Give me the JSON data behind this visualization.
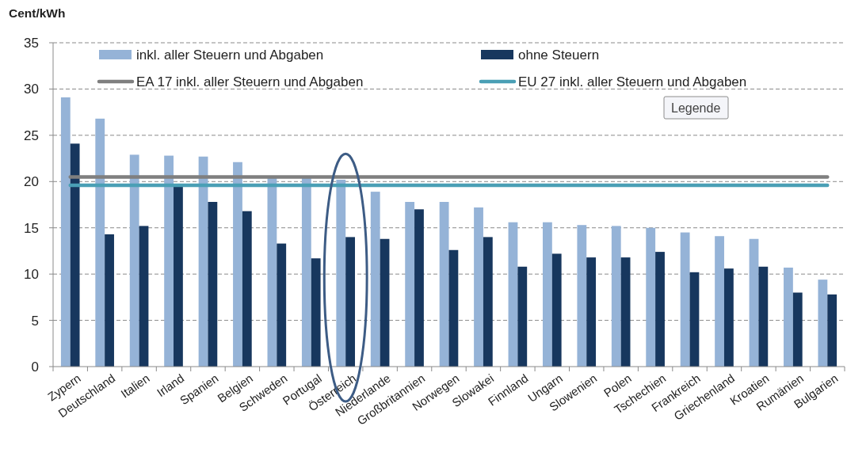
{
  "chart_data": {
    "type": "bar",
    "ylabel": "Cent/kWh",
    "categories": [
      "Zypern",
      "Deutschland",
      "Italien",
      "Irland",
      "Spanien",
      "Belgien",
      "Schweden",
      "Portugal",
      "Österreich",
      "Niederlande",
      "Großbritannien",
      "Norwegen",
      "Slowakei",
      "Finnland",
      "Ungarn",
      "Slowenien",
      "Polen",
      "Tschechien",
      "Frankreich",
      "Griechenland",
      "Kroatien",
      "Rumänien",
      "Bulgarien"
    ],
    "series": [
      {
        "name": "inkl. aller Steuern und Abgaben",
        "color": "#95b3d7",
        "values": [
          29.1,
          26.8,
          22.9,
          22.8,
          22.7,
          22.1,
          20.5,
          20.5,
          20.2,
          18.9,
          17.8,
          17.8,
          17.2,
          15.6,
          15.6,
          15.3,
          15.2,
          15.0,
          14.5,
          14.1,
          13.8,
          10.7,
          9.4
        ]
      },
      {
        "name": "ohne Steuern",
        "color": "#17375e",
        "values": [
          24.1,
          14.3,
          15.2,
          19.6,
          17.8,
          16.8,
          13.3,
          11.7,
          14.0,
          13.8,
          17.0,
          12.6,
          14.0,
          10.8,
          12.2,
          11.8,
          11.8,
          12.4,
          10.2,
          10.6,
          10.8,
          8.0,
          7.8
        ]
      },
      {
        "name": "EA 17 inkl. aller Steuern und Abgaben",
        "type": "line",
        "color": "#7f7f7f",
        "values": [
          20.5,
          20.5,
          20.5,
          20.5,
          20.5,
          20.5,
          20.5,
          20.5,
          20.5,
          20.5,
          20.5,
          20.5,
          20.5,
          20.5,
          20.5,
          20.5,
          20.5,
          20.5,
          20.5,
          20.5,
          20.5,
          20.5,
          20.5
        ]
      },
      {
        "name": "EU 27 inkl. aller Steuern und Abgaben",
        "type": "line",
        "color": "#4a9fb5",
        "values": [
          19.6,
          19.6,
          19.6,
          19.6,
          19.6,
          19.6,
          19.6,
          19.6,
          19.6,
          19.6,
          19.6,
          19.6,
          19.6,
          19.6,
          19.6,
          19.6,
          19.6,
          19.6,
          19.6,
          19.6,
          19.6,
          19.6,
          19.6
        ]
      }
    ],
    "ylim": [
      0,
      35
    ],
    "yticks": [
      0,
      5,
      10,
      15,
      20,
      25,
      30,
      35
    ],
    "grid": "y",
    "legend": "top",
    "annotations": [
      "Legende"
    ]
  }
}
